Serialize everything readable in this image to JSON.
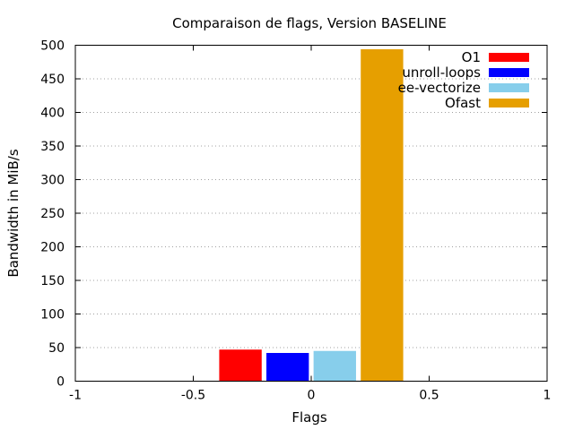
{
  "chart_data": {
    "type": "bar",
    "title": "Comparaison de flags, Version BASELINE",
    "xlabel": "Flags",
    "ylabel": "Bandwidth in MiB/s",
    "xlim": [
      -1,
      1
    ],
    "ylim": [
      0,
      500
    ],
    "xticks": [
      "-1",
      "-0.5",
      "0",
      "0.5",
      "1"
    ],
    "xtick_values": [
      -1,
      -0.5,
      0,
      0.5,
      1
    ],
    "yticks": [
      "0",
      "50",
      "100",
      "150",
      "200",
      "250",
      "300",
      "350",
      "400",
      "450",
      "500"
    ],
    "ytick_values": [
      0,
      50,
      100,
      150,
      200,
      250,
      300,
      350,
      400,
      450,
      500
    ],
    "grid": "horizontal-dotted",
    "legend_position": "top-right",
    "categories": [
      "0"
    ],
    "series": [
      {
        "name": "O1",
        "color": "#ff0000",
        "values": [
          47
        ],
        "x": -0.3
      },
      {
        "name": "unroll-loops",
        "color": "#0000ff",
        "values": [
          42
        ],
        "x": -0.1
      },
      {
        "name": "ee-vectorize",
        "color": "#87ceeb",
        "values": [
          45
        ],
        "x": 0.1
      },
      {
        "name": "Ofast",
        "color": "#e69f00",
        "values": [
          494
        ],
        "x": 0.3
      }
    ]
  }
}
